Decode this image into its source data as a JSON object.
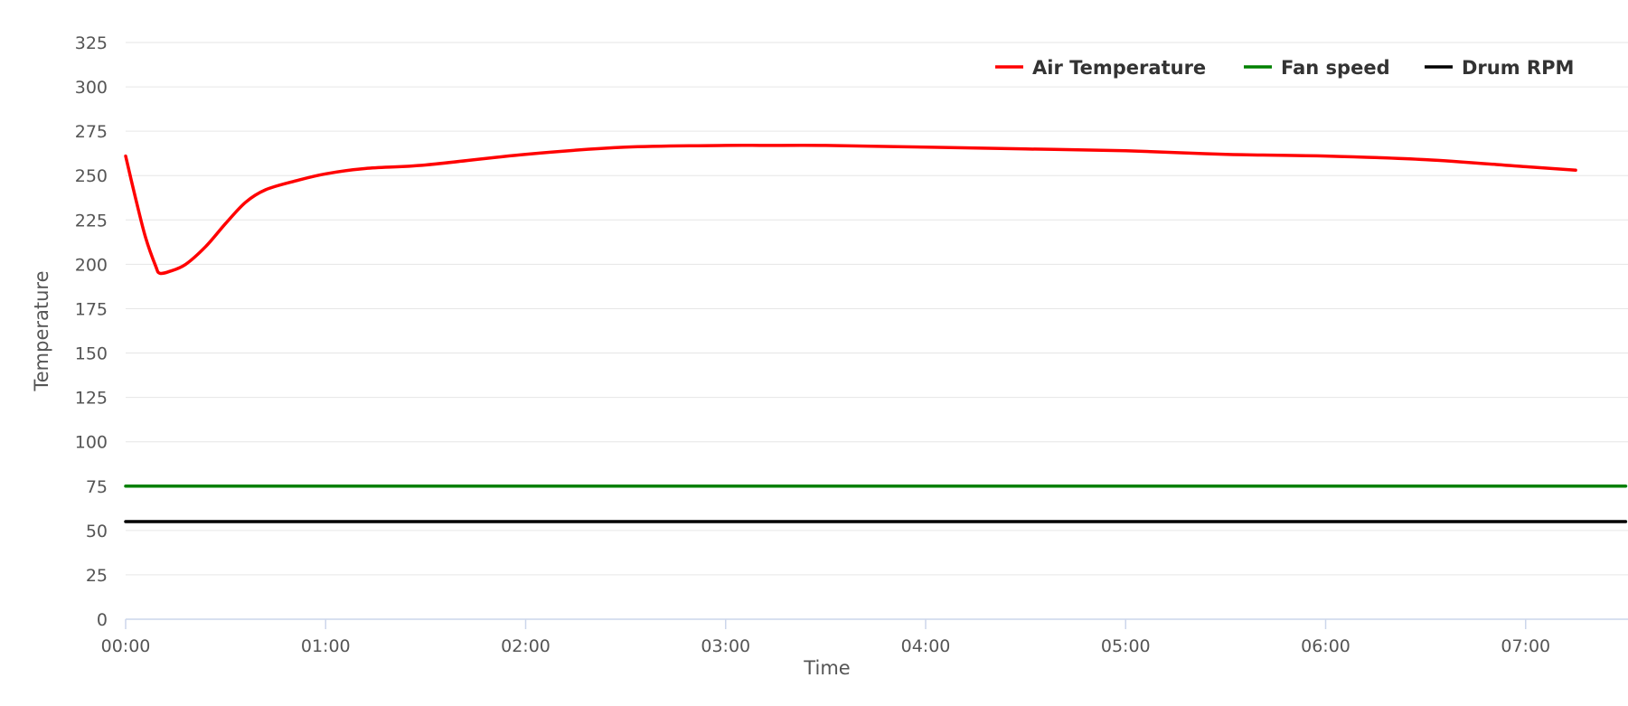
{
  "chart_data": {
    "type": "line",
    "title": "",
    "xlabel": "Time",
    "ylabel": "Temperature",
    "xlim_minutes": [
      0,
      7.5
    ],
    "ylim": [
      0,
      325
    ],
    "y_ticks": [
      0,
      25,
      50,
      75,
      100,
      125,
      150,
      175,
      200,
      225,
      250,
      275,
      300,
      325
    ],
    "x_ticks": [
      {
        "value": 0,
        "label": "00:00"
      },
      {
        "value": 1,
        "label": "01:00"
      },
      {
        "value": 2,
        "label": "02:00"
      },
      {
        "value": 3,
        "label": "03:00"
      },
      {
        "value": 4,
        "label": "04:00"
      },
      {
        "value": 5,
        "label": "05:00"
      },
      {
        "value": 6,
        "label": "06:00"
      },
      {
        "value": 7,
        "label": "07:00"
      }
    ],
    "grid": true,
    "legend_position": "top-right",
    "series": [
      {
        "name": "Air Temperature",
        "color": "#ff0000",
        "x": [
          0,
          0.05,
          0.1,
          0.15,
          0.17,
          0.22,
          0.3,
          0.4,
          0.5,
          0.6,
          0.7,
          0.85,
          1.0,
          1.2,
          1.5,
          2.0,
          2.5,
          3.0,
          3.2,
          3.5,
          4.0,
          4.5,
          5.0,
          5.5,
          6.0,
          6.5,
          7.0,
          7.25
        ],
        "y": [
          261,
          237,
          215,
          199,
          195,
          196,
          200,
          210,
          223,
          235,
          242,
          247,
          251,
          254,
          256,
          262,
          266,
          267,
          267,
          267,
          266,
          265,
          264,
          262,
          261,
          259,
          255,
          253
        ]
      },
      {
        "name": "Fan speed",
        "color": "#008000",
        "x": [
          0,
          7.5
        ],
        "y": [
          75,
          75
        ]
      },
      {
        "name": "Drum RPM",
        "color": "#000000",
        "x": [
          0,
          7.5
        ],
        "y": [
          55,
          55
        ]
      }
    ]
  }
}
